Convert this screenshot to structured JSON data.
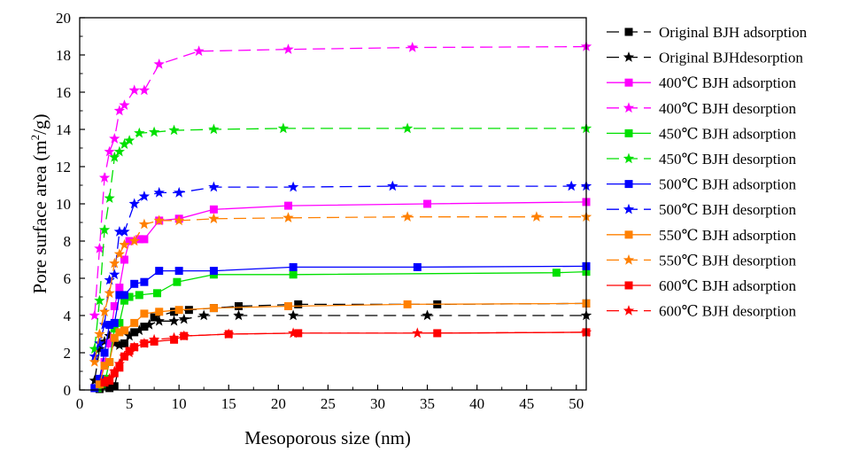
{
  "chart_data": {
    "type": "line",
    "title": "",
    "xlabel": "Mesoporous size (nm)",
    "ylabel": {
      "main": "Pore surface area (m",
      "sup": "2",
      "tail": "/g)"
    },
    "xlim": [
      0,
      51
    ],
    "ylim": [
      0,
      20
    ],
    "xticks": [
      0,
      5,
      10,
      15,
      20,
      25,
      30,
      35,
      40,
      45,
      50
    ],
    "yticks": [
      0,
      2,
      4,
      6,
      8,
      10,
      12,
      14,
      16,
      18,
      20
    ],
    "grid": false,
    "legend_position": "right",
    "series": [
      {
        "name": "Original BJH adsorption",
        "color": "#000000",
        "marker": "square",
        "dash": "long",
        "x": [
          2.0,
          3.0,
          3.5,
          4.5,
          5.5,
          6.5,
          7.5,
          9.5,
          11,
          13.5,
          16,
          22,
          36,
          51
        ],
        "y": [
          0.05,
          0.1,
          0.2,
          2.5,
          3.1,
          3.4,
          3.9,
          4.2,
          4.3,
          4.4,
          4.5,
          4.6,
          4.6,
          4.65
        ]
      },
      {
        "name": "Original BJHdesorption",
        "color": "#000000",
        "marker": "star",
        "dash": "long",
        "x": [
          1.5,
          2.0,
          2.5,
          3.0,
          3.5,
          4.0,
          5.0,
          6.0,
          7.0,
          8.0,
          9.5,
          10.5,
          12.5,
          16,
          21.5,
          35,
          51
        ],
        "y": [
          0.5,
          2.2,
          2.6,
          2.9,
          2.5,
          2.4,
          2.9,
          3.2,
          3.5,
          3.7,
          3.7,
          3.8,
          4.0,
          4.0,
          4.0,
          4.0,
          4.0
        ]
      },
      {
        "name": "400℃ BJH adsorption",
        "color": "#ff00ff",
        "marker": "square",
        "dash": "solid",
        "x": [
          1.5,
          2.0,
          2.5,
          3.0,
          3.5,
          4.0,
          4.5,
          5.0,
          6.0,
          6.5,
          8.0,
          10,
          13.5,
          21,
          35,
          51
        ],
        "y": [
          0.1,
          0.5,
          1.5,
          2.5,
          4.5,
          5.5,
          7.0,
          8.0,
          8.1,
          8.1,
          9.1,
          9.2,
          9.7,
          9.9,
          10.0,
          10.1
        ]
      },
      {
        "name": "400℃ BJH desorption",
        "color": "#ff00ff",
        "marker": "star",
        "dash": "long",
        "x": [
          1.5,
          2.0,
          2.5,
          3.0,
          3.5,
          4.0,
          4.5,
          5.5,
          6.5,
          8.0,
          12,
          21,
          33.5,
          51
        ],
        "y": [
          4.0,
          7.6,
          11.4,
          12.8,
          13.5,
          15.0,
          15.3,
          16.1,
          16.1,
          17.5,
          18.2,
          18.3,
          18.4,
          18.45
        ]
      },
      {
        "name": "450℃ BJH adsorption",
        "color": "#00e000",
        "marker": "square",
        "dash": "solid",
        "x": [
          1.8,
          2.2,
          2.6,
          3.0,
          3.5,
          4.0,
          4.5,
          5.0,
          6.0,
          7.8,
          9.8,
          13.5,
          21.5,
          48,
          51
        ],
        "y": [
          0.1,
          0.3,
          0.6,
          1.5,
          3.3,
          3.6,
          4.8,
          5.0,
          5.1,
          5.2,
          5.8,
          6.2,
          6.2,
          6.3,
          6.35
        ]
      },
      {
        "name": "450℃ BJH desorption",
        "color": "#00e000",
        "marker": "star",
        "dash": "long",
        "x": [
          1.5,
          2.0,
          2.5,
          3.0,
          3.5,
          4.0,
          4.5,
          5.0,
          6.0,
          7.5,
          9.5,
          13.5,
          20.5,
          33,
          51
        ],
        "y": [
          2.2,
          4.8,
          8.6,
          10.3,
          12.5,
          12.8,
          13.2,
          13.4,
          13.8,
          13.85,
          13.95,
          14.0,
          14.05,
          14.05,
          14.05
        ]
      },
      {
        "name": "500℃ BJH adsorption",
        "color": "#0000ff",
        "marker": "square",
        "dash": "solid",
        "x": [
          1.5,
          2.0,
          2.5,
          3.0,
          3.5,
          4.0,
          4.5,
          5.5,
          6.5,
          8.0,
          10,
          13.5,
          21.5,
          34,
          51
        ],
        "y": [
          0.1,
          0.6,
          2.0,
          3.5,
          3.6,
          5.1,
          5.1,
          5.7,
          5.8,
          6.4,
          6.4,
          6.4,
          6.6,
          6.6,
          6.65
        ]
      },
      {
        "name": "500℃ BJH desorption",
        "color": "#0000ff",
        "marker": "star",
        "dash": "long",
        "x": [
          1.5,
          2.0,
          2.5,
          3.0,
          3.5,
          4.0,
          4.5,
          5.5,
          6.5,
          8.0,
          10,
          13.5,
          21.5,
          31.5,
          49.5,
          51
        ],
        "y": [
          1.8,
          2.5,
          3.5,
          5.9,
          6.2,
          8.5,
          8.5,
          10.0,
          10.4,
          10.6,
          10.6,
          10.9,
          10.9,
          10.95,
          10.95,
          10.95
        ]
      },
      {
        "name": "550℃ BJH adsorption",
        "color": "#ff8000",
        "marker": "square",
        "dash": "solid",
        "x": [
          2.0,
          2.5,
          3.0,
          3.5,
          4.0,
          4.5,
          5.5,
          6.5,
          8.0,
          10,
          13.5,
          21,
          33,
          51
        ],
        "y": [
          0.3,
          1.3,
          1.5,
          2.8,
          3.1,
          3.2,
          3.6,
          4.1,
          4.2,
          4.3,
          4.4,
          4.5,
          4.6,
          4.65
        ]
      },
      {
        "name": "550℃ BJH desorption",
        "color": "#ff8000",
        "marker": "star",
        "dash": "long",
        "x": [
          1.5,
          2.0,
          2.5,
          3.0,
          3.5,
          4.0,
          4.5,
          5.5,
          6.5,
          8.0,
          10,
          13.5,
          21,
          33,
          46,
          51
        ],
        "y": [
          1.5,
          3.0,
          4.2,
          5.2,
          6.8,
          7.3,
          7.8,
          8.0,
          8.9,
          9.1,
          9.1,
          9.2,
          9.25,
          9.3,
          9.3,
          9.3
        ]
      },
      {
        "name": "600℃ BJH adsorption",
        "color": "#ff0000",
        "marker": "square",
        "dash": "solid",
        "x": [
          2.5,
          3.0,
          3.5,
          4.0,
          4.5,
          5.0,
          5.5,
          6.5,
          7.5,
          9.5,
          10.5,
          15,
          22,
          36,
          51
        ],
        "y": [
          0.4,
          0.5,
          0.9,
          1.2,
          1.8,
          2.1,
          2.3,
          2.5,
          2.6,
          2.7,
          2.9,
          3.0,
          3.05,
          3.05,
          3.1
        ]
      },
      {
        "name": "600℃ BJH desorption",
        "color": "#ff0000",
        "marker": "star",
        "dash": "long",
        "x": [
          2.5,
          3.0,
          3.5,
          4.0,
          4.5,
          5.0,
          5.5,
          6.5,
          7.5,
          9.5,
          10.5,
          15,
          21.5,
          34,
          51
        ],
        "y": [
          0.5,
          0.6,
          1.0,
          1.4,
          1.8,
          2.0,
          2.3,
          2.5,
          2.7,
          2.8,
          2.9,
          3.0,
          3.05,
          3.05,
          3.1
        ]
      }
    ]
  }
}
